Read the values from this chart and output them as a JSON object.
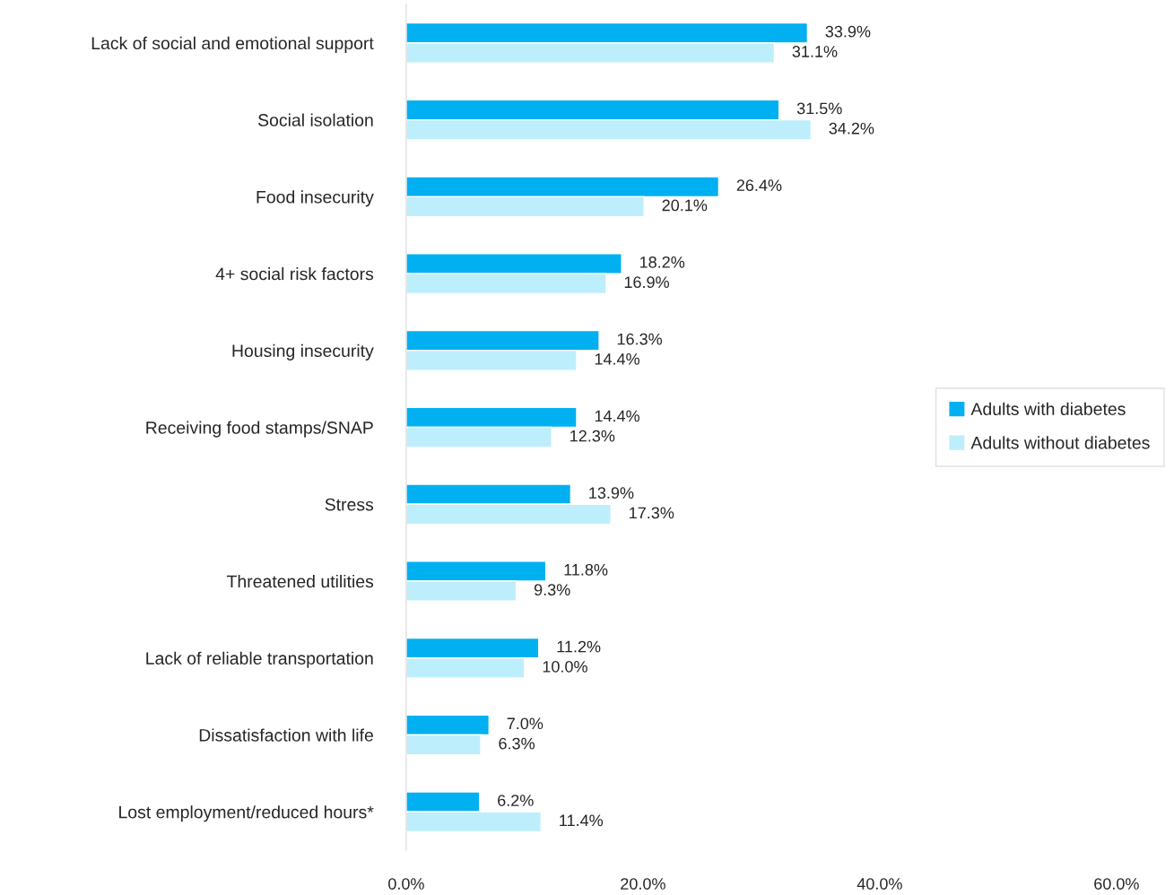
{
  "chart_data": {
    "type": "bar",
    "orientation": "horizontal",
    "categories": [
      "Lack of social and emotional support",
      "Social isolation",
      "Food insecurity",
      "4+ social risk factors",
      "Housing insecurity",
      "Receiving food stamps/SNAP",
      "Stress",
      "Threatened utilities",
      "Lack of reliable transportation",
      "Dissatisfaction with life",
      "Lost employment/reduced hours*"
    ],
    "series": [
      {
        "name": "Adults with diabetes",
        "color": "#00b0f0",
        "values": [
          33.9,
          31.5,
          26.4,
          18.2,
          16.3,
          14.4,
          13.9,
          11.8,
          11.2,
          7.0,
          6.2
        ],
        "value_labels": [
          "33.9%",
          "31.5%",
          "26.4%",
          "18.2%",
          "16.3%",
          "14.4%",
          "13.9%",
          "11.8%",
          "11.2%",
          "7.0%",
          "6.2%"
        ]
      },
      {
        "name": "Adults without diabetes",
        "color": "#bdeefc",
        "values": [
          31.1,
          34.2,
          20.1,
          16.9,
          14.4,
          12.3,
          17.3,
          9.3,
          10.0,
          6.3,
          11.4
        ],
        "value_labels": [
          "31.1%",
          "34.2%",
          "20.1%",
          "16.9%",
          "14.4%",
          "12.3%",
          "17.3%",
          "9.3%",
          "10.0%",
          "6.3%",
          "11.4%"
        ]
      }
    ],
    "xlim": [
      0,
      60
    ],
    "xticks": [
      {
        "value": 0,
        "label": "0.0%"
      },
      {
        "value": 20,
        "label": "20.0%"
      },
      {
        "value": 40,
        "label": "40.0%"
      },
      {
        "value": 60,
        "label": "60.0%"
      }
    ],
    "legend": "right",
    "grid": false
  }
}
